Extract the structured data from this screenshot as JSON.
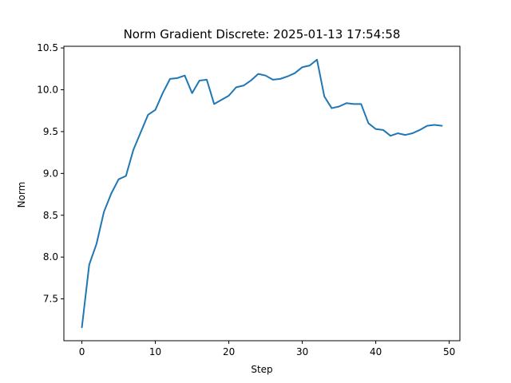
{
  "chart_data": {
    "type": "line",
    "title": "Norm Gradient Discrete: 2025-01-13 17:54:58",
    "xlabel": "Step",
    "ylabel": "Norm",
    "xlim": [
      -2.45,
      51.45
    ],
    "ylim": [
      7.0,
      10.52
    ],
    "xticks": [
      0,
      10,
      20,
      30,
      40,
      50
    ],
    "yticks": [
      7.5,
      8.0,
      8.5,
      9.0,
      9.5,
      10.0,
      10.5
    ],
    "xtick_labels": [
      "0",
      "10",
      "20",
      "30",
      "40",
      "50"
    ],
    "ytick_labels": [
      "7.5",
      "8.0",
      "8.5",
      "9.0",
      "9.5",
      "10.0",
      "10.5"
    ],
    "grid": false,
    "series": [
      {
        "color": "#1f77b4",
        "x": [
          0,
          1,
          2,
          3,
          4,
          5,
          6,
          7,
          8,
          9,
          10,
          11,
          12,
          13,
          14,
          15,
          16,
          17,
          18,
          19,
          20,
          21,
          22,
          23,
          24,
          25,
          26,
          27,
          28,
          29,
          30,
          31,
          32,
          33,
          34,
          35,
          36,
          37,
          38,
          39,
          40,
          41,
          42,
          43,
          44,
          45,
          46,
          47,
          48,
          49
        ],
        "y": [
          7.16,
          7.91,
          8.16,
          8.54,
          8.76,
          8.93,
          8.97,
          9.28,
          9.49,
          9.7,
          9.76,
          9.96,
          10.13,
          10.14,
          10.17,
          9.96,
          10.11,
          10.12,
          9.83,
          9.88,
          9.93,
          10.03,
          10.05,
          10.11,
          10.19,
          10.17,
          10.12,
          10.13,
          10.16,
          10.2,
          10.27,
          10.29,
          10.36,
          9.92,
          9.78,
          9.8,
          9.84,
          9.83,
          9.83,
          9.6,
          9.53,
          9.52,
          9.45,
          9.48,
          9.46,
          9.48,
          9.52,
          9.57,
          9.58,
          9.57
        ]
      }
    ]
  }
}
